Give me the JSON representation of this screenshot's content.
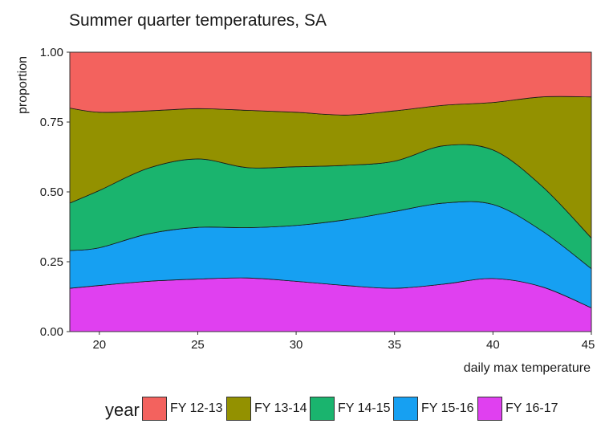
{
  "chart_data": {
    "type": "area",
    "title": "Summer quarter temperatures, SA",
    "xlabel": "daily max temperature",
    "ylabel": "proportion",
    "xlim": [
      18.5,
      45
    ],
    "ylim": [
      0,
      1
    ],
    "x_ticks": [
      20,
      25,
      30,
      35,
      40,
      45
    ],
    "y_ticks": [
      0,
      0.25,
      0.5,
      0.75,
      1
    ],
    "y_tick_labels": [
      "0.00",
      "0.25",
      "0.50",
      "0.75",
      "1.00"
    ],
    "grid": false,
    "legend_position": "bottom",
    "legend_title": "year",
    "stacked": true,
    "x": [
      18.5,
      20,
      22.5,
      25,
      27.5,
      30,
      32.5,
      35,
      37.5,
      40,
      42.5,
      45
    ],
    "series": [
      {
        "name": "FY 16-17",
        "color": "#E040F0",
        "values": [
          0.155,
          0.165,
          0.18,
          0.188,
          0.192,
          0.18,
          0.165,
          0.155,
          0.17,
          0.19,
          0.16,
          0.085
        ]
      },
      {
        "name": "FY 15-16",
        "color": "#16A0F2",
        "values": [
          0.135,
          0.135,
          0.17,
          0.185,
          0.18,
          0.2,
          0.235,
          0.275,
          0.29,
          0.265,
          0.2,
          0.14
        ]
      },
      {
        "name": "FY 14-15",
        "color": "#1AB46E",
        "values": [
          0.17,
          0.205,
          0.235,
          0.245,
          0.215,
          0.21,
          0.195,
          0.18,
          0.205,
          0.195,
          0.16,
          0.11
        ]
      },
      {
        "name": "FY 13-14",
        "color": "#939100",
        "values": [
          0.34,
          0.28,
          0.205,
          0.18,
          0.205,
          0.195,
          0.18,
          0.18,
          0.145,
          0.17,
          0.32,
          0.505
        ]
      },
      {
        "name": "FY 12-13",
        "color": "#F3625E",
        "values": [
          0.2,
          0.215,
          0.21,
          0.202,
          0.208,
          0.215,
          0.225,
          0.21,
          0.19,
          0.18,
          0.16,
          0.16
        ]
      }
    ],
    "legend_order": [
      "FY 12-13",
      "FY 13-14",
      "FY 14-15",
      "FY 15-16",
      "FY 16-17"
    ]
  }
}
